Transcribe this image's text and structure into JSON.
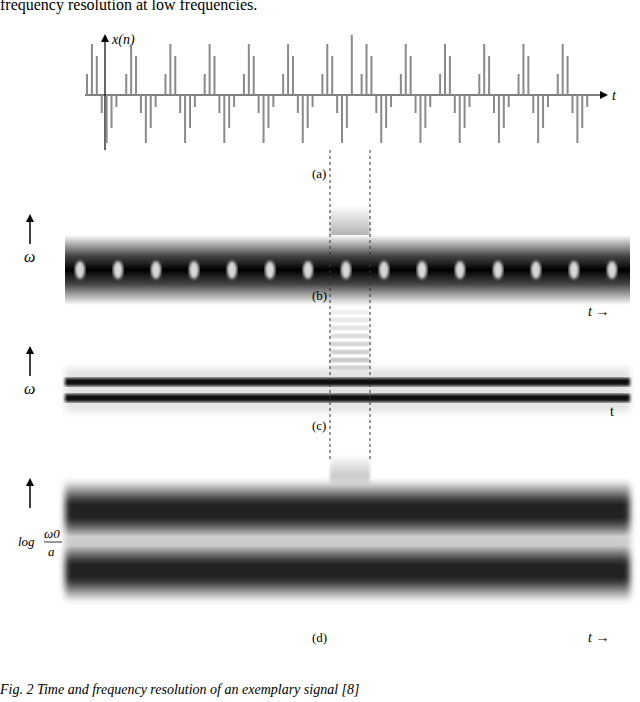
{
  "chart_data": {
    "type": "bar",
    "title": "(a)",
    "y_label": "x(n)",
    "x_label": "t",
    "color": "#8a8a8a",
    "ylim": [
      -1,
      1
    ],
    "tick_labels": false,
    "values": [
      0.35,
      0.85,
      0.65,
      -0.3,
      -0.8,
      -0.55,
      -0.2,
      0,
      0.35,
      0.85,
      0.65,
      -0.3,
      -0.8,
      -0.55,
      -0.2,
      0,
      0.35,
      0.85,
      0.65,
      -0.3,
      -0.8,
      -0.55,
      -0.2,
      0,
      0.35,
      0.85,
      0.65,
      -0.3,
      -0.8,
      -0.55,
      -0.2,
      0,
      0.35,
      0.85,
      0.65,
      -0.3,
      -0.8,
      -0.55,
      -0.2,
      0,
      0.35,
      0.85,
      0.65,
      -0.3,
      -0.8,
      -0.55,
      -0.2,
      0,
      0.35,
      0.85,
      0.65,
      -0.3,
      -0.8,
      -0.55,
      1.0,
      0,
      0.35,
      0.85,
      0.65,
      -0.3,
      -0.8,
      -0.55,
      -0.2,
      0,
      0.35,
      0.85,
      0.65,
      -0.3,
      -0.8,
      -0.55,
      -0.2,
      0,
      0.35,
      0.85,
      0.65,
      -0.3,
      -0.8,
      -0.55,
      -0.2,
      0,
      0.35,
      0.85,
      0.65,
      -0.3,
      -0.8,
      -0.55,
      -0.2,
      0,
      0.35,
      0.85,
      0.65,
      -0.3,
      -0.8,
      -0.55,
      -0.2,
      0,
      0.35,
      0.85,
      0.65,
      -0.3,
      -0.8,
      -0.55,
      -0.2,
      0
    ]
  },
  "document": {
    "top_text": "frequency resolution at low frequencies.",
    "panels": [
      {
        "label": "(b)",
        "y_label": "ω",
        "x_label": "t →"
      },
      {
        "label": "(c)",
        "y_label": "ω",
        "x_label": "t"
      },
      {
        "label": "(d)",
        "y_label": {
          "prefix": "log",
          "numerator": "ω0",
          "denominator": "a"
        },
        "x_label": "t →"
      }
    ],
    "caption": "Fig. 2 Time and frequency resolution of an exemplary signal [8]"
  }
}
